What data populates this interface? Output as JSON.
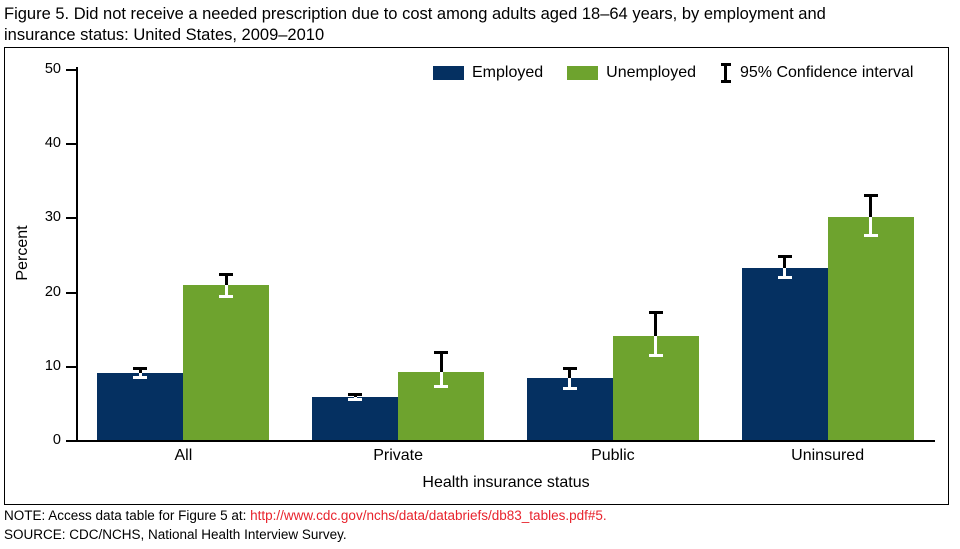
{
  "header": {
    "title_line1": "Figure 5. Did not receive a needed prescription due to cost among adults aged 18–64 years, by employment and",
    "title_line2": "insurance status: United States, 2009–2010"
  },
  "chart_data": {
    "type": "bar",
    "title": "Did not receive a needed prescription due to cost among adults aged 18–64 years, by employment and insurance status: United States, 2009–2010",
    "categories": [
      "All",
      "Private",
      "Public",
      "Uninsured"
    ],
    "series": [
      {
        "name": "Employed",
        "color": "#053061",
        "values": [
          9.0,
          5.8,
          8.3,
          23.2
        ],
        "ci_low": [
          8.2,
          5.2,
          6.7,
          21.7
        ],
        "ci_high": [
          9.8,
          6.4,
          9.9,
          25.0
        ]
      },
      {
        "name": "Unemployed",
        "color": "#6ea32e",
        "values": [
          20.9,
          9.2,
          14.0,
          30.1
        ],
        "ci_low": [
          19.2,
          7.0,
          11.2,
          27.4
        ],
        "ci_high": [
          22.5,
          12.0,
          17.4,
          33.1
        ]
      }
    ],
    "legend_ci": "95% Confidence interval",
    "legend_position": "top",
    "xlabel": "Health insurance status",
    "ylabel": "Percent",
    "ylim": [
      0,
      50
    ],
    "yticks": [
      0,
      10,
      20,
      30,
      40,
      50
    ],
    "grid": false,
    "error_bars": true
  },
  "colors": {
    "employed": "#053061",
    "unemployed": "#6ea32e",
    "link_red": "#e8232d",
    "axis": "#000000"
  },
  "footer": {
    "note_prefix": "NOTE: Access data table for Figure 5 at:",
    "note_link": "http://www.cdc.gov/nchs/data/databriefs/db83_tables.pdf#5.",
    "source": "SOURCE: CDC/NCHS, National Health Interview Survey."
  }
}
